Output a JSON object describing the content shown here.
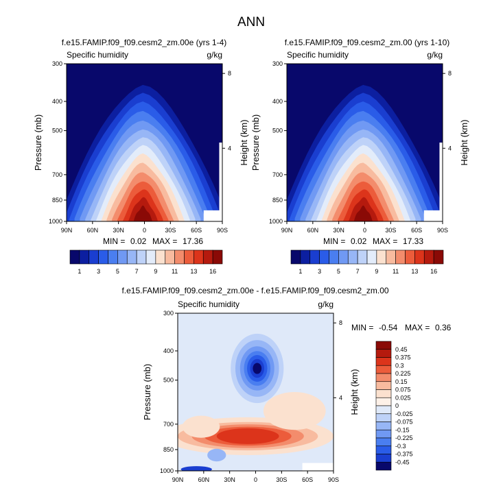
{
  "figure_title": "ANN",
  "chart_data": [
    {
      "type": "heatmap",
      "title": "f.e15.FAMIP.f09_f09.cesm2_zm.00e (yrs 1-4)",
      "subtitle_left": "Specific humidity",
      "subtitle_right": "g/kg",
      "ylabel": "Pressure (mb)",
      "ylabel_right": "Height (km)",
      "x_ticks": [
        "90N",
        "60N",
        "30N",
        "0",
        "30S",
        "60S",
        "90S"
      ],
      "y_ticks": [
        "300",
        "400",
        "500",
        "700",
        "850",
        "1000"
      ],
      "y_right_ticks": [
        "8",
        "4"
      ],
      "min_label": "MIN =",
      "min_value": "0.02",
      "max_label": "MAX =",
      "max_value": "17.36",
      "ylim": [
        1000,
        300
      ]
    },
    {
      "type": "heatmap",
      "title": "f.e15.FAMIP.f09_f09.cesm2_zm.00 (yrs 1-10)",
      "subtitle_left": "Specific humidity",
      "subtitle_right": "g/kg",
      "ylabel": "Pressure (mb)",
      "ylabel_right": "Height (km)",
      "x_ticks": [
        "90N",
        "60N",
        "30N",
        "0",
        "30S",
        "60S",
        "90S"
      ],
      "y_ticks": [
        "300",
        "400",
        "500",
        "700",
        "850",
        "1000"
      ],
      "y_right_ticks": [
        "8",
        "4"
      ],
      "min_label": "MIN =",
      "min_value": "0.02",
      "max_label": "MAX =",
      "max_value": "17.33",
      "ylim": [
        1000,
        300
      ]
    },
    {
      "type": "heatmap",
      "title": "f.e15.FAMIP.f09_f09.cesm2_zm.00e - f.e15.FAMIP.f09_f09.cesm2_zm.00",
      "subtitle_left": "Specific humidity",
      "subtitle_right": "g/kg",
      "ylabel": "Pressure (mb)",
      "ylabel_right": "Height (km)",
      "x_ticks": [
        "90N",
        "60N",
        "30N",
        "0",
        "30S",
        "60S",
        "90S"
      ],
      "y_ticks": [
        "300",
        "400",
        "500",
        "700",
        "850",
        "1000"
      ],
      "y_right_ticks": [
        "8",
        "4"
      ],
      "min_label": "MIN =",
      "min_value": "-0.54",
      "max_label": "MAX =",
      "max_value": "0.36",
      "ylim": [
        1000,
        300
      ]
    }
  ],
  "colorbar_horizontal": {
    "labels": [
      "1",
      "3",
      "5",
      "7",
      "9",
      "11",
      "13",
      "16"
    ],
    "colors": [
      "#08086b",
      "#0c1fa0",
      "#1a3ed0",
      "#2a5ce8",
      "#4a7ef0",
      "#7099f3",
      "#97b6f6",
      "#bed2f8",
      "#e3ecfa",
      "#fbe1cf",
      "#f8bb9f",
      "#f38c6c",
      "#ec5c3b",
      "#dc341b",
      "#b51a0e",
      "#8a0a06"
    ]
  },
  "colorbar_vertical": {
    "labels": [
      "0.45",
      "0.375",
      "0.3",
      "0.225",
      "0.15",
      "0.075",
      "0.025",
      "0",
      "-0.025",
      "-0.075",
      "-0.15",
      "-0.225",
      "-0.3",
      "-0.375",
      "-0.45"
    ],
    "colors": [
      "#8a0a06",
      "#b51a0e",
      "#dc341b",
      "#ec5c3b",
      "#f38c6c",
      "#f8bb9f",
      "#fbe1cf",
      "#fdf1e8",
      "#dfe9f9",
      "#bed2f8",
      "#97b6f6",
      "#7099f3",
      "#4a7ef0",
      "#2a5ce8",
      "#1a3ed0",
      "#08086b"
    ]
  }
}
